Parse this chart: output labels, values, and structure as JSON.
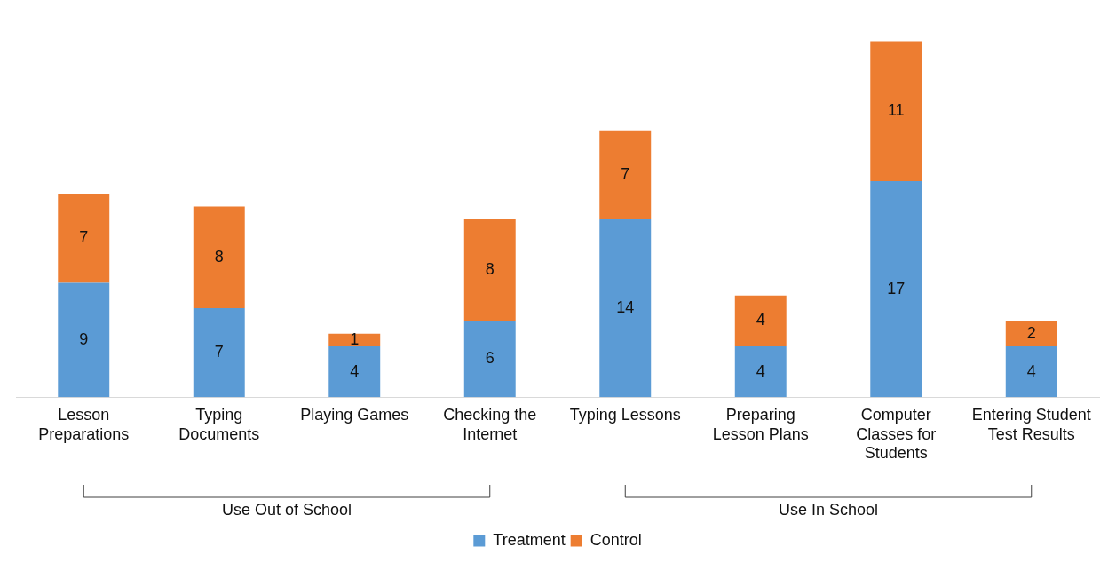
{
  "chart_data": {
    "type": "bar",
    "stacked": true,
    "data_labels": true,
    "legend": "bottom",
    "grid": false,
    "categories": [
      "Lesson Preparations",
      "Typing Documents",
      "Playing Games",
      "Checking the Internet",
      "Typing Lessons",
      "Preparing Lesson Plans",
      "Computer Classes for Students",
      "Entering Student Test Results"
    ],
    "series": [
      {
        "name": "Treatment",
        "color": "#5b9bd5",
        "values": [
          9,
          7,
          4,
          6,
          14,
          4,
          17,
          4
        ]
      },
      {
        "name": "Control",
        "color": "#ed7d31",
        "values": [
          7,
          8,
          1,
          8,
          7,
          4,
          11,
          2
        ]
      }
    ],
    "annotations": [
      "Use Out of School",
      "Use In School"
    ]
  }
}
